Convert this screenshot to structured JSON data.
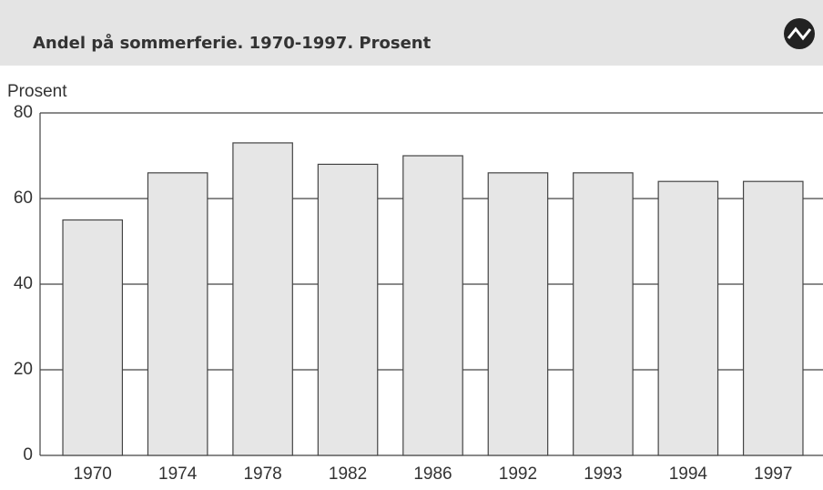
{
  "chart_data": {
    "type": "bar",
    "title": "Andel på sommerferie. 1970-1997. Prosent",
    "y_axis_label": "Prosent",
    "categories": [
      "1970",
      "1974",
      "1978",
      "1982",
      "1986",
      "1992",
      "1993",
      "1994",
      "1997"
    ],
    "values": [
      55,
      66,
      73,
      68,
      70,
      66,
      66,
      64,
      64
    ],
    "color": "#e6e6e6",
    "ylim": [
      0,
      80
    ],
    "yticks": [
      0,
      20,
      40,
      60,
      80
    ],
    "grid": true
  }
}
